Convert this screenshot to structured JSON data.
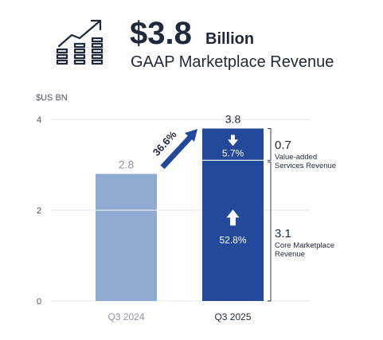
{
  "header": {
    "value": "$3.8",
    "unit": "Billion",
    "subtitle": "GAAP Marketplace Revenue",
    "icon": "growth-chart-icon"
  },
  "colors": {
    "q3_2024_bar": "#8fa9d0",
    "q3_2025_bar": "#234a9a",
    "arrow": "#234a9a",
    "text": "#1e2a3a",
    "muted": "#8d96a3",
    "grid": "#e1e4e8"
  },
  "chart_data": {
    "type": "bar",
    "ylabel": "$US BN",
    "ylim": [
      0,
      4
    ],
    "yticks": [
      0,
      2,
      4
    ],
    "categories": [
      "Q3 2024",
      "Q3 2025"
    ],
    "values": [
      2.8,
      3.8
    ],
    "value_labels": [
      "2.8",
      "3.8"
    ],
    "growth_label": "36.6%",
    "segments": [
      {
        "name_lines": [
          "Core Marketplace",
          "Revenue"
        ],
        "value": 3.1,
        "value_label": "3.1",
        "growth": "52.8%",
        "direction": "up"
      },
      {
        "name_lines": [
          "Value-added",
          "Services Revenue"
        ],
        "value": 0.7,
        "value_label": "0.7",
        "growth": "5.7%",
        "direction": "down"
      }
    ],
    "grid": true
  }
}
